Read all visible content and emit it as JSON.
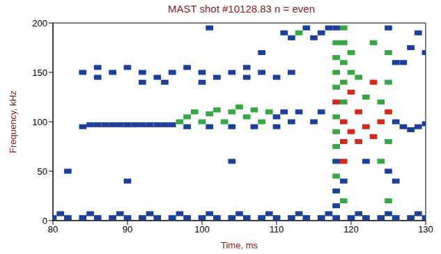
{
  "chart_data": {
    "type": "heatmap",
    "title": "MAST shot #10128.83 n = even",
    "x_label": "Time, ms",
    "y_label": "Frequency, kHz",
    "xlim": [
      80,
      130
    ],
    "xticks": [
      80,
      90,
      100,
      110,
      120,
      130
    ],
    "ylim": [
      0,
      200
    ],
    "yticks": [
      0,
      50,
      100,
      150,
      200
    ],
    "grid": false,
    "cell_width": 1,
    "cell_height": 5,
    "levels": [
      1,
      2,
      3
    ],
    "colors": [
      "#1c3f9c",
      "#35a845",
      "#d42a1c"
    ],
    "cells": [
      [
        80,
        3,
        1
      ],
      [
        82,
        3,
        1
      ],
      [
        84,
        3,
        1
      ],
      [
        86,
        3,
        1
      ],
      [
        88,
        3,
        1
      ],
      [
        90,
        3,
        1
      ],
      [
        92,
        3,
        1
      ],
      [
        94,
        3,
        1
      ],
      [
        96,
        3,
        1
      ],
      [
        98,
        3,
        1
      ],
      [
        100,
        3,
        1
      ],
      [
        102,
        3,
        1
      ],
      [
        104,
        3,
        1
      ],
      [
        106,
        3,
        1
      ],
      [
        108,
        3,
        1
      ],
      [
        110,
        3,
        1
      ],
      [
        112,
        3,
        1
      ],
      [
        114,
        3,
        1
      ],
      [
        116,
        3,
        1
      ],
      [
        118,
        3,
        1
      ],
      [
        120,
        3,
        1
      ],
      [
        122,
        3,
        1
      ],
      [
        124,
        3,
        1
      ],
      [
        126,
        3,
        1
      ],
      [
        128,
        3,
        1
      ],
      [
        130,
        3,
        1
      ],
      [
        81,
        7,
        1
      ],
      [
        85,
        7,
        1
      ],
      [
        89,
        7,
        1
      ],
      [
        93,
        7,
        1
      ],
      [
        97,
        7,
        1
      ],
      [
        101,
        7,
        1
      ],
      [
        105,
        7,
        1
      ],
      [
        109,
        7,
        1
      ],
      [
        113,
        7,
        1
      ],
      [
        117,
        7,
        1
      ],
      [
        121,
        7,
        1
      ],
      [
        125,
        7,
        1
      ],
      [
        129,
        7,
        1
      ],
      [
        84,
        95,
        1
      ],
      [
        85,
        97,
        1
      ],
      [
        86,
        97,
        1
      ],
      [
        87,
        97,
        1
      ],
      [
        88,
        97,
        1
      ],
      [
        89,
        97,
        1
      ],
      [
        90,
        97,
        1
      ],
      [
        91,
        97,
        1
      ],
      [
        92,
        97,
        1
      ],
      [
        93,
        97,
        1
      ],
      [
        94,
        97,
        1
      ],
      [
        95,
        97,
        1
      ],
      [
        96,
        97,
        1
      ],
      [
        84,
        150,
        1
      ],
      [
        86,
        145,
        1
      ],
      [
        88,
        150,
        1
      ],
      [
        90,
        155,
        1
      ],
      [
        92,
        150,
        1
      ],
      [
        94,
        145,
        1
      ],
      [
        96,
        150,
        1
      ],
      [
        98,
        155,
        1
      ],
      [
        100,
        150,
        1
      ],
      [
        102,
        145,
        1
      ],
      [
        104,
        150,
        1
      ],
      [
        106,
        155,
        1
      ],
      [
        108,
        150,
        1
      ],
      [
        110,
        145,
        1
      ],
      [
        112,
        150,
        1
      ],
      [
        86,
        155,
        1
      ],
      [
        92,
        140,
        1
      ],
      [
        100,
        140,
        1
      ],
      [
        106,
        145,
        1
      ],
      [
        97,
        100,
        2
      ],
      [
        98,
        105,
        2
      ],
      [
        99,
        110,
        2
      ],
      [
        100,
        100,
        2
      ],
      [
        101,
        108,
        2
      ],
      [
        102,
        112,
        2
      ],
      [
        103,
        100,
        2
      ],
      [
        104,
        110,
        2
      ],
      [
        105,
        115,
        2
      ],
      [
        106,
        105,
        2
      ],
      [
        107,
        112,
        2
      ],
      [
        108,
        100,
        2
      ],
      [
        109,
        110,
        2
      ],
      [
        110,
        105,
        1
      ],
      [
        111,
        110,
        1
      ],
      [
        112,
        100,
        1
      ],
      [
        98,
        95,
        1
      ],
      [
        101,
        95,
        1
      ],
      [
        104,
        95,
        1
      ],
      [
        107,
        95,
        1
      ],
      [
        110,
        95,
        1
      ],
      [
        111,
        190,
        1
      ],
      [
        112,
        185,
        1
      ],
      [
        113,
        190,
        2
      ],
      [
        114,
        195,
        1
      ],
      [
        115,
        185,
        1
      ],
      [
        116,
        190,
        1
      ],
      [
        117,
        195,
        1
      ],
      [
        113,
        110,
        1
      ],
      [
        115,
        100,
        1
      ],
      [
        116,
        110,
        1
      ],
      [
        118,
        15,
        1
      ],
      [
        118,
        30,
        1
      ],
      [
        118,
        45,
        2
      ],
      [
        118,
        60,
        1
      ],
      [
        118,
        75,
        2
      ],
      [
        118,
        90,
        2
      ],
      [
        118,
        105,
        2
      ],
      [
        118,
        120,
        3
      ],
      [
        118,
        135,
        2
      ],
      [
        118,
        150,
        2
      ],
      [
        118,
        165,
        2
      ],
      [
        118,
        180,
        2
      ],
      [
        118,
        195,
        1
      ],
      [
        119,
        20,
        2
      ],
      [
        119,
        40,
        1
      ],
      [
        119,
        60,
        3
      ],
      [
        119,
        80,
        3
      ],
      [
        119,
        100,
        3
      ],
      [
        119,
        120,
        2
      ],
      [
        119,
        140,
        2
      ],
      [
        119,
        160,
        2
      ],
      [
        119,
        180,
        2
      ],
      [
        119,
        195,
        2
      ],
      [
        120,
        90,
        3
      ],
      [
        120,
        130,
        3
      ],
      [
        120,
        150,
        2
      ],
      [
        121,
        80,
        3
      ],
      [
        121,
        110,
        3
      ],
      [
        121,
        145,
        2
      ],
      [
        122,
        95,
        3
      ],
      [
        122,
        125,
        2
      ],
      [
        123,
        85,
        3
      ],
      [
        123,
        140,
        3
      ],
      [
        124,
        100,
        3
      ],
      [
        124,
        120,
        2
      ],
      [
        124,
        60,
        2
      ],
      [
        122,
        60,
        1
      ],
      [
        120,
        170,
        2
      ],
      [
        123,
        180,
        2
      ],
      [
        125,
        20,
        2
      ],
      [
        125,
        50,
        1
      ],
      [
        125,
        80,
        2
      ],
      [
        125,
        110,
        3
      ],
      [
        125,
        140,
        2
      ],
      [
        125,
        170,
        2
      ],
      [
        125,
        195,
        1
      ],
      [
        126,
        40,
        1
      ],
      [
        126,
        100,
        1
      ],
      [
        126,
        160,
        1
      ],
      [
        127,
        95,
        1
      ],
      [
        128,
        92,
        1
      ],
      [
        129,
        95,
        1
      ],
      [
        130,
        98,
        1
      ],
      [
        127,
        160,
        1
      ],
      [
        128,
        175,
        1
      ],
      [
        129,
        190,
        1
      ],
      [
        130,
        170,
        1
      ],
      [
        82,
        50,
        1
      ],
      [
        90,
        40,
        1
      ],
      [
        95,
        140,
        1
      ],
      [
        104,
        60,
        1
      ],
      [
        108,
        170,
        1
      ],
      [
        101,
        195,
        1
      ]
    ]
  }
}
